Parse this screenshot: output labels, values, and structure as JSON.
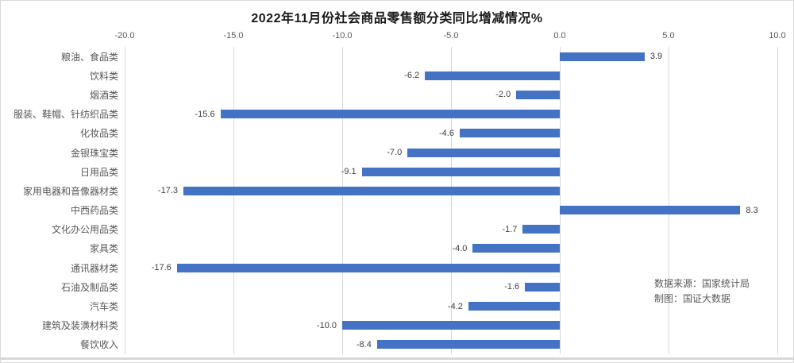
{
  "title": "2022年11月份社会商品零售额分类同比增减情况%",
  "source": {
    "line1": "数据来源：国家统计局",
    "line2": "制图：国证大数据"
  },
  "colors": {
    "bar": "#4472C4",
    "grid": "#d9d9d9",
    "axis_text": "#595959",
    "value_text": "#404040",
    "title_text": "#1a1a1a",
    "frame_border": "#d9d9d9"
  },
  "chart_data": {
    "type": "bar",
    "orientation": "horizontal",
    "title": "2022年11月份社会商品零售额分类同比增减情况%",
    "categories": [
      "粮油、食品类",
      "饮料类",
      "烟酒类",
      "服装、鞋帽、针纺织品类",
      "化妆品类",
      "金银珠宝类",
      "日用品类",
      "家用电器和音像器材类",
      "中西药品类",
      "文化办公用品类",
      "家具类",
      "通讯器材类",
      "石油及制品类",
      "汽车类",
      "建筑及装潢材料类",
      "餐饮收入"
    ],
    "values": [
      3.9,
      -6.2,
      -2.0,
      -15.6,
      -4.6,
      -7.0,
      -9.1,
      -17.3,
      8.3,
      -1.7,
      -4.0,
      -17.6,
      -1.6,
      -4.2,
      -10.0,
      -8.4
    ],
    "value_labels": [
      "3.9",
      "-6.2",
      "-2.0",
      "-15.6",
      "-4.6",
      "-7.0",
      "-9.1",
      "-17.3",
      "8.3",
      "-1.7",
      "-4.0",
      "-17.6",
      "-1.6",
      "-4.2",
      "-10.0",
      "-8.4"
    ],
    "xlabel": "",
    "ylabel": "",
    "xlim": [
      -20,
      10
    ],
    "xticks": [
      -20,
      -15,
      -10,
      -5,
      0,
      5,
      10
    ],
    "xtick_labels": [
      "-20.0",
      "-15.0",
      "-10.0",
      "-5.0",
      "0.0",
      "5.0",
      "10.0"
    ],
    "grid": "vertical",
    "legend": "none",
    "annotations": [
      "数据来源：国家统计局",
      "制图：国证大数据"
    ]
  }
}
